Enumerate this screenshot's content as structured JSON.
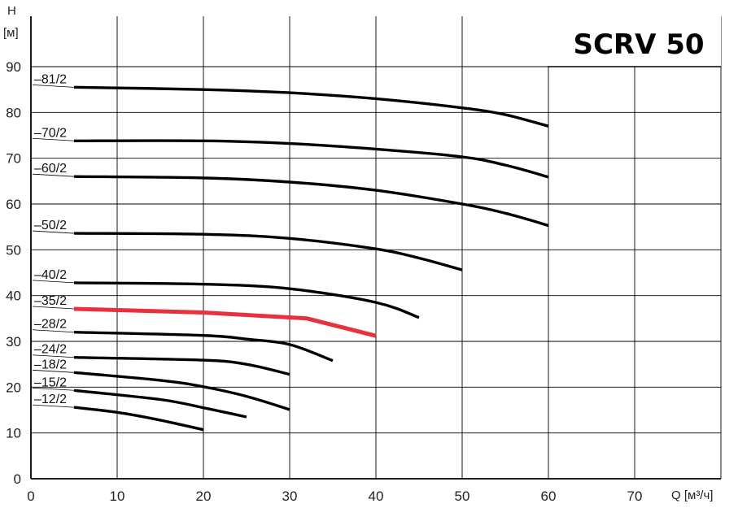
{
  "chart_data": {
    "type": "line",
    "title": "SCRV 50",
    "xlabel": "Q [м³/ч]",
    "ylabel": "H",
    "yunit": "[м]",
    "xlim": [
      0,
      80
    ],
    "ylim": [
      0,
      95
    ],
    "xticks": [
      0,
      10,
      20,
      30,
      40,
      50,
      60,
      70
    ],
    "yticks": [
      0,
      10,
      20,
      30,
      40,
      50,
      60,
      70,
      80,
      90
    ],
    "grid": true,
    "colors": {
      "default": "#000000",
      "highlight": "#e8313c",
      "grid": "#000000"
    },
    "series": [
      {
        "name": "–81/2",
        "x": [
          5,
          20,
          30,
          40,
          50,
          55,
          60
        ],
        "y": [
          85.5,
          85,
          84.3,
          83,
          81,
          79.5,
          77
        ]
      },
      {
        "name": "–70/2",
        "x": [
          5,
          20,
          30,
          40,
          50,
          55,
          60
        ],
        "y": [
          73.8,
          73.8,
          73.2,
          72,
          70.3,
          68.5,
          65.9
        ]
      },
      {
        "name": "–60/2",
        "x": [
          5,
          20,
          30,
          40,
          50,
          55,
          60
        ],
        "y": [
          66,
          65.7,
          64.8,
          63,
          60,
          58,
          55.3
        ]
      },
      {
        "name": "–50/2",
        "x": [
          5,
          20,
          30,
          40,
          45,
          50
        ],
        "y": [
          53.6,
          53.4,
          52.5,
          50.2,
          48.2,
          45.6
        ]
      },
      {
        "name": "–40/2",
        "x": [
          5,
          20,
          30,
          40,
          45
        ],
        "y": [
          42.8,
          42.5,
          41.5,
          38.5,
          35.2
        ]
      },
      {
        "name": "–35/2",
        "highlight": true,
        "x": [
          5,
          20,
          32,
          40
        ],
        "y": [
          37.1,
          36.3,
          35,
          31.2
        ]
      },
      {
        "name": "–28/2",
        "x": [
          5,
          20,
          25,
          30,
          35
        ],
        "y": [
          32,
          31.3,
          30.5,
          29.3,
          25.8
        ]
      },
      {
        "name": "–24/2",
        "x": [
          5,
          20,
          25,
          30
        ],
        "y": [
          26.5,
          25.9,
          25,
          22.8
        ]
      },
      {
        "name": "–18/2",
        "x": [
          5,
          15,
          20,
          25,
          30
        ],
        "y": [
          23.2,
          21.5,
          20.1,
          18,
          15.1
        ]
      },
      {
        "name": "–15/2",
        "x": [
          5,
          15,
          20,
          25
        ],
        "y": [
          19.3,
          17.3,
          15.5,
          13.5
        ]
      },
      {
        "name": "–12/2",
        "x": [
          5,
          10,
          15,
          20
        ],
        "y": [
          15.6,
          14.5,
          12.8,
          10.7
        ]
      }
    ]
  }
}
